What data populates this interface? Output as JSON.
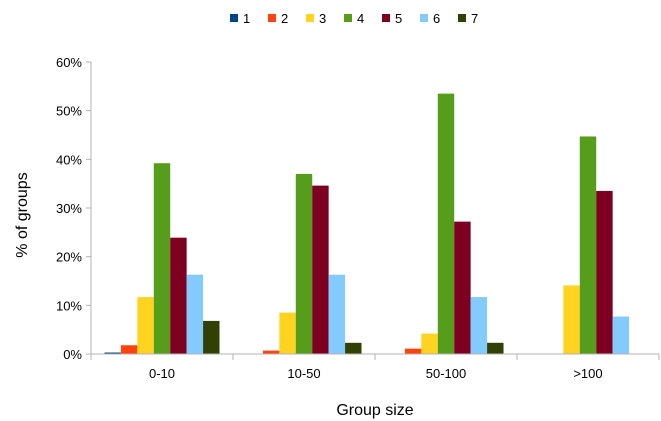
{
  "chart_data": {
    "type": "bar",
    "title": "",
    "xlabel": "Group size",
    "ylabel": "% of groups",
    "categories": [
      "0-10",
      "10-50",
      "50-100",
      ">100"
    ],
    "ylim": [
      0,
      60
    ],
    "yticks": [
      "0%",
      "10%",
      "20%",
      "30%",
      "40%",
      "50%",
      "60%"
    ],
    "grid": false,
    "legend_position": "top",
    "series": [
      {
        "name": "1",
        "color": "#004586",
        "values": [
          0.3,
          0,
          0,
          0
        ]
      },
      {
        "name": "2",
        "color": "#ff420e",
        "values": [
          1.8,
          0.7,
          1.1,
          0
        ]
      },
      {
        "name": "3",
        "color": "#ffd320",
        "values": [
          11.7,
          8.5,
          4.2,
          14.1
        ]
      },
      {
        "name": "4",
        "color": "#579d1c",
        "values": [
          39.2,
          37.0,
          53.5,
          44.7
        ]
      },
      {
        "name": "5",
        "color": "#7e0021",
        "values": [
          23.9,
          34.6,
          27.2,
          33.5
        ]
      },
      {
        "name": "6",
        "color": "#83caff",
        "values": [
          16.3,
          16.3,
          11.7,
          7.7
        ]
      },
      {
        "name": "7",
        "color": "#314004",
        "values": [
          6.8,
          2.3,
          2.3,
          0
        ]
      }
    ]
  }
}
